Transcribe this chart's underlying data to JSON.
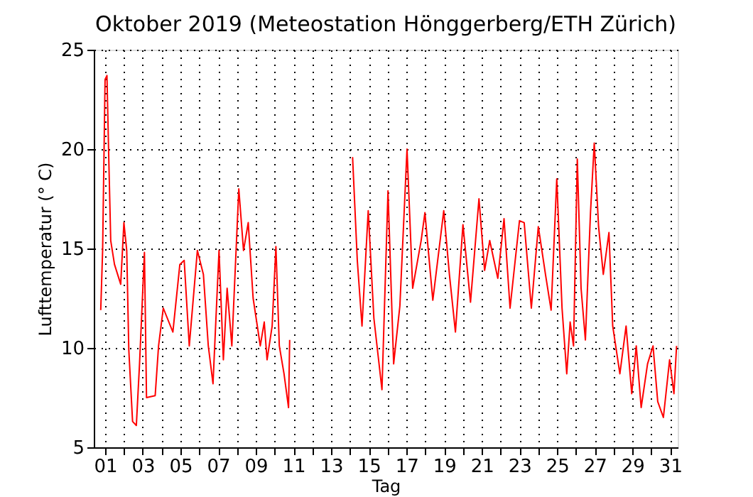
{
  "chart_data": {
    "type": "line",
    "title": "Oktober 2019  (Meteostation Hönggerberg/ETH Zürich)",
    "xlabel": "Tag",
    "ylabel": "Lufttemperatur (° C)",
    "x": [
      0.77,
      0.87,
      1.0,
      1.1,
      1.2,
      1.3,
      1.5,
      1.83,
      2.0,
      2.15,
      2.26,
      2.46,
      2.66,
      2.83,
      3.09,
      3.2,
      3.66,
      3.84,
      4.09,
      4.6,
      4.97,
      5.2,
      5.47,
      5.9,
      6.22,
      6.48,
      6.73,
      7.05,
      7.28,
      7.48,
      7.73,
      8.1,
      8.35,
      8.6,
      8.86,
      9.24,
      9.45,
      9.6,
      9.87,
      10.07,
      10.25,
      10.5,
      10.74,
      10.8,
      12.5,
      14.14,
      14.39,
      14.64,
      14.97,
      15.27,
      15.7,
      16.02,
      16.32,
      16.65,
      17.03,
      17.33,
      17.78,
      17.98,
      18.4,
      18.98,
      19.28,
      19.6,
      20.0,
      20.4,
      20.85,
      21.15,
      21.42,
      21.85,
      22.18,
      22.5,
      23.0,
      23.25,
      23.63,
      24.0,
      24.38,
      24.68,
      24.98,
      25.26,
      25.51,
      25.69,
      25.87,
      26.07,
      26.27,
      26.5,
      26.77,
      26.97,
      27.2,
      27.45,
      27.75,
      27.95,
      28.33,
      28.66,
      28.96,
      29.2,
      29.46,
      29.8,
      30.09,
      30.34,
      30.64,
      30.97,
      31.2,
      31.34
    ],
    "series": [
      {
        "color": "#ff0000",
        "values": [
          11.9,
          14.9,
          23.5,
          23.7,
          19.4,
          15.4,
          14.2,
          13.2,
          16.3,
          14.9,
          9.9,
          6.3,
          6.1,
          9.2,
          14.8,
          7.5,
          7.6,
          10.1,
          12.0,
          10.8,
          14.2,
          14.4,
          10.1,
          14.9,
          13.7,
          10.1,
          8.2,
          14.9,
          9.4,
          13.0,
          10.1,
          18.0,
          14.9,
          16.3,
          12.5,
          10.1,
          11.3,
          9.4,
          11.1,
          15.1,
          10.1,
          8.7,
          7.0,
          10.4,
          null,
          19.6,
          14.4,
          11.1,
          16.9,
          11.5,
          7.9,
          17.9,
          9.2,
          12.1,
          20.0,
          13.0,
          15.4,
          16.8,
          12.4,
          16.9,
          13.7,
          10.8,
          16.2,
          12.3,
          17.5,
          13.9,
          15.4,
          13.5,
          16.5,
          12.0,
          16.4,
          16.3,
          12.0,
          16.1,
          13.7,
          11.9,
          18.5,
          12.0,
          8.7,
          11.3,
          10.1,
          19.5,
          13.0,
          10.4,
          16.8,
          20.3,
          16.1,
          13.7,
          15.8,
          11.1,
          8.7,
          11.1,
          7.7,
          10.1,
          7.0,
          9.2,
          10.1,
          7.3,
          6.5,
          9.4,
          7.7,
          10.1
        ]
      }
    ],
    "xlim": [
      0.4,
      31.4
    ],
    "xticks": [
      {
        "value": 1,
        "label": "01"
      },
      {
        "value": 2,
        "label": null
      },
      {
        "value": 3,
        "label": "03"
      },
      {
        "value": 4,
        "label": null
      },
      {
        "value": 5,
        "label": "05"
      },
      {
        "value": 6,
        "label": null
      },
      {
        "value": 7,
        "label": "07"
      },
      {
        "value": 8,
        "label": null
      },
      {
        "value": 9,
        "label": "09"
      },
      {
        "value": 10,
        "label": null
      },
      {
        "value": 11,
        "label": "11"
      },
      {
        "value": 12,
        "label": null
      },
      {
        "value": 13,
        "label": "13"
      },
      {
        "value": 14,
        "label": null
      },
      {
        "value": 15,
        "label": "15"
      },
      {
        "value": 16,
        "label": null
      },
      {
        "value": 17,
        "label": "17"
      },
      {
        "value": 18,
        "label": null
      },
      {
        "value": 19,
        "label": "19"
      },
      {
        "value": 20,
        "label": null
      },
      {
        "value": 21,
        "label": "21"
      },
      {
        "value": 22,
        "label": null
      },
      {
        "value": 23,
        "label": "23"
      },
      {
        "value": 24,
        "label": null
      },
      {
        "value": 25,
        "label": "25"
      },
      {
        "value": 26,
        "label": null
      },
      {
        "value": 27,
        "label": "27"
      },
      {
        "value": 28,
        "label": null
      },
      {
        "value": 29,
        "label": "29"
      },
      {
        "value": 30,
        "label": null
      },
      {
        "value": 31,
        "label": "31"
      }
    ],
    "ylim": [
      5,
      25
    ],
    "yticks": [
      5,
      10,
      15,
      20,
      25
    ],
    "grid": true,
    "marker": "none",
    "line_style": "solid"
  }
}
